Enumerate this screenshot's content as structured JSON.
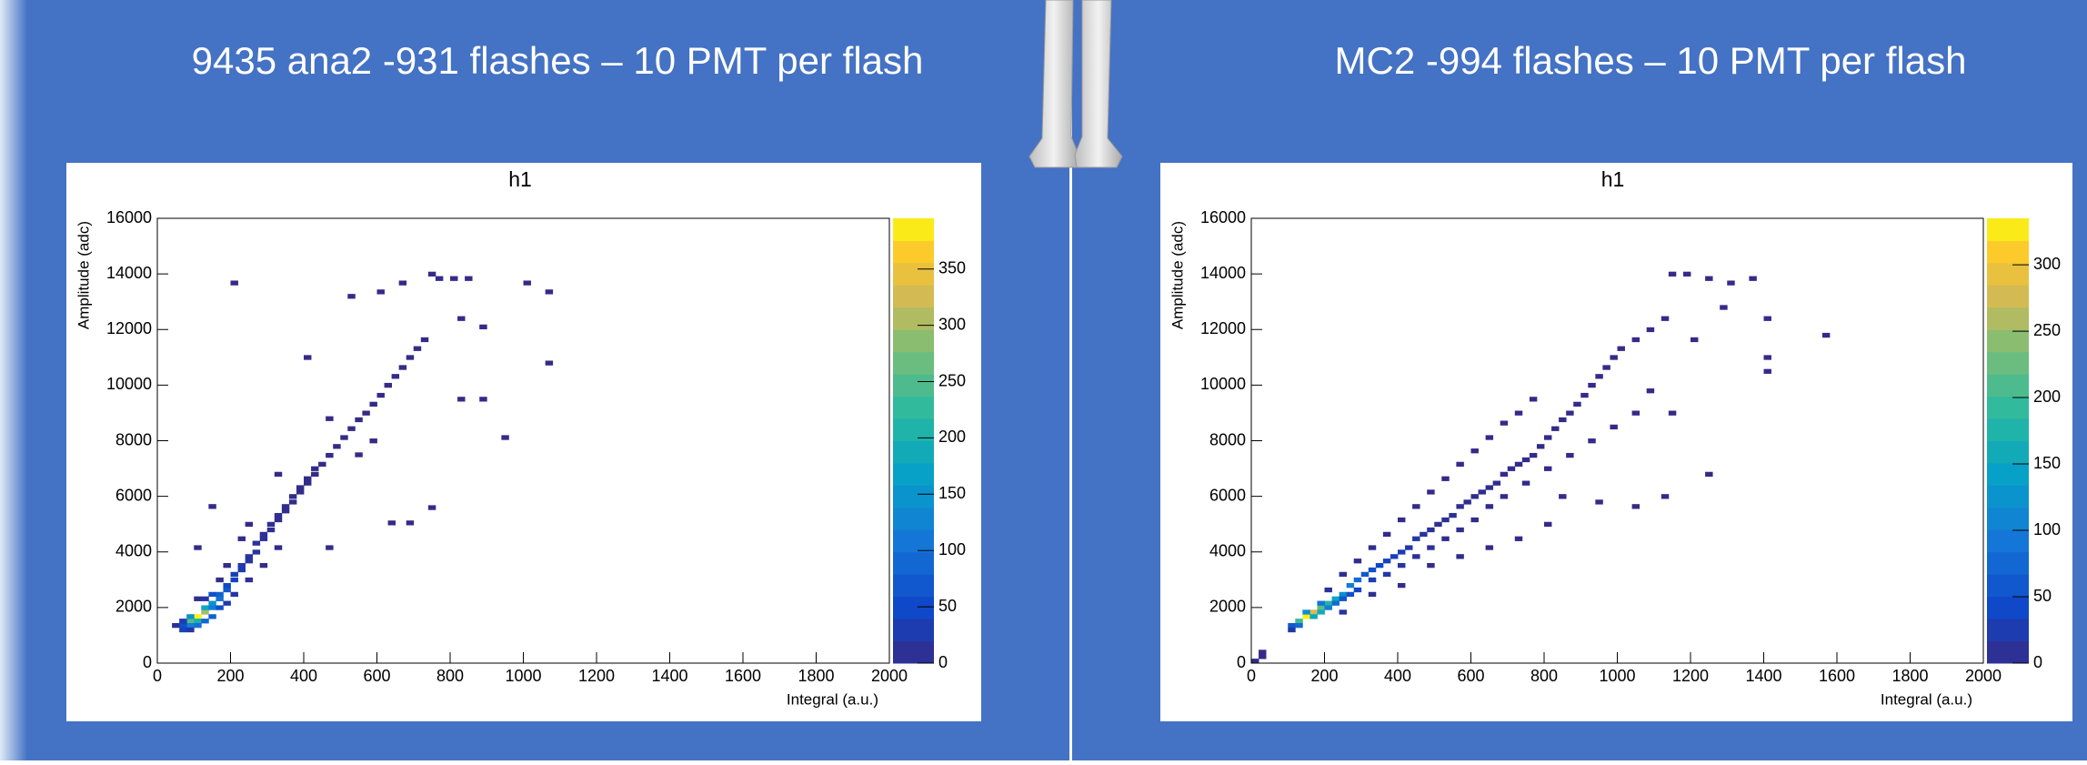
{
  "chart_data": [
    {
      "type": "heatmap",
      "heading": "9435 ana2 -931 flashes – 10 PMT per flash",
      "title": "h1",
      "x_label": "Integral (a.u.)",
      "y_label": "Amplitude (adc)",
      "xlim": [
        0,
        2000
      ],
      "xticks": [
        0,
        200,
        400,
        600,
        800,
        1000,
        1200,
        1400,
        1600,
        1800,
        2000
      ],
      "ylim": [
        0,
        16000
      ],
      "yticks": [
        0,
        2000,
        4000,
        6000,
        8000,
        10000,
        12000,
        14000,
        16000
      ],
      "zlim": [
        0,
        395
      ],
      "zticks": [
        0,
        50,
        100,
        150,
        200,
        250,
        300,
        350
      ],
      "points": [
        [
          90,
          1520,
          250
        ],
        [
          110,
          1680,
          390
        ],
        [
          130,
          1840,
          300
        ],
        [
          110,
          1520,
          200
        ],
        [
          90,
          1360,
          120
        ],
        [
          130,
          2000,
          180
        ],
        [
          150,
          2160,
          150
        ],
        [
          150,
          2000,
          120
        ],
        [
          170,
          2320,
          100
        ],
        [
          170,
          2480,
          80
        ],
        [
          70,
          1360,
          60
        ],
        [
          70,
          1200,
          40
        ],
        [
          130,
          1520,
          90
        ],
        [
          150,
          2480,
          60
        ],
        [
          190,
          2640,
          70
        ],
        [
          190,
          2800,
          50
        ],
        [
          210,
          3000,
          40
        ],
        [
          210,
          3200,
          35
        ],
        [
          230,
          3360,
          30
        ],
        [
          230,
          3520,
          25
        ],
        [
          250,
          3680,
          20
        ],
        [
          250,
          3840,
          15
        ],
        [
          270,
          4000,
          15
        ],
        [
          270,
          4320,
          12
        ],
        [
          290,
          4480,
          10
        ],
        [
          290,
          4640,
          10
        ],
        [
          310,
          4800,
          8
        ],
        [
          310,
          5000,
          8
        ],
        [
          330,
          5160,
          6
        ],
        [
          330,
          5320,
          6
        ],
        [
          350,
          5480,
          5
        ],
        [
          350,
          5640,
          5
        ],
        [
          370,
          5800,
          4
        ],
        [
          370,
          6000,
          4
        ],
        [
          390,
          6160,
          3
        ],
        [
          390,
          6320,
          3
        ],
        [
          410,
          6480,
          3
        ],
        [
          410,
          6640,
          2
        ],
        [
          430,
          6800,
          2
        ],
        [
          430,
          7000,
          2
        ],
        [
          450,
          7160,
          1
        ],
        [
          470,
          7480,
          1
        ],
        [
          490,
          7800,
          1
        ],
        [
          510,
          8120,
          1
        ],
        [
          530,
          8440,
          1
        ],
        [
          550,
          8760,
          1
        ],
        [
          570,
          9000,
          1
        ],
        [
          590,
          9320,
          1
        ],
        [
          610,
          9640,
          1
        ],
        [
          630,
          10000,
          1
        ],
        [
          650,
          10320,
          1
        ],
        [
          670,
          10640,
          1
        ],
        [
          690,
          11000,
          1
        ],
        [
          710,
          11320,
          1
        ],
        [
          730,
          11640,
          1
        ],
        [
          750,
          14000,
          1
        ],
        [
          770,
          13840,
          1
        ],
        [
          810,
          13840,
          1
        ],
        [
          850,
          13840,
          1
        ],
        [
          1010,
          13680,
          1
        ],
        [
          1070,
          13360,
          1
        ],
        [
          1070,
          10800,
          1
        ],
        [
          950,
          8120,
          1
        ],
        [
          830,
          9500,
          1
        ],
        [
          890,
          9500,
          1
        ],
        [
          210,
          13680,
          1
        ],
        [
          530,
          13200,
          1
        ],
        [
          610,
          13360,
          1
        ],
        [
          670,
          13680,
          1
        ],
        [
          890,
          12100,
          1
        ],
        [
          830,
          12400,
          1
        ],
        [
          640,
          5050,
          1
        ],
        [
          690,
          5050,
          1
        ],
        [
          750,
          5600,
          1
        ],
        [
          470,
          4160,
          1
        ],
        [
          110,
          4160,
          1
        ],
        [
          150,
          5640,
          1
        ],
        [
          330,
          6800,
          1
        ],
        [
          250,
          5000,
          1
        ],
        [
          590,
          8000,
          1
        ],
        [
          470,
          8800,
          1
        ],
        [
          410,
          11000,
          1
        ],
        [
          550,
          7500,
          1
        ],
        [
          290,
          3520,
          2
        ],
        [
          330,
          4160,
          2
        ],
        [
          190,
          3520,
          2
        ],
        [
          230,
          4480,
          2
        ],
        [
          170,
          3000,
          3
        ],
        [
          110,
          2320,
          5
        ],
        [
          70,
          1520,
          30
        ],
        [
          190,
          2160,
          25
        ],
        [
          210,
          2480,
          20
        ],
        [
          250,
          3000,
          10
        ],
        [
          150,
          1680,
          80
        ],
        [
          170,
          2000,
          60
        ],
        [
          130,
          2320,
          20
        ],
        [
          90,
          1680,
          150
        ],
        [
          110,
          1360,
          100
        ],
        [
          50,
          1360,
          10
        ],
        [
          90,
          1200,
          20
        ]
      ]
    },
    {
      "type": "heatmap",
      "heading": "MC2 -994 flashes – 10 PMT per flash",
      "title": "h1",
      "x_label": "Integral (a.u.)",
      "y_label": "Amplitude (adc)",
      "xlim": [
        0,
        2000
      ],
      "xticks": [
        0,
        200,
        400,
        600,
        800,
        1000,
        1200,
        1400,
        1600,
        1800,
        2000
      ],
      "ylim": [
        0,
        16000
      ],
      "yticks": [
        0,
        2000,
        4000,
        6000,
        8000,
        10000,
        12000,
        14000,
        16000
      ],
      "zlim": [
        0,
        335
      ],
      "zticks": [
        0,
        50,
        100,
        150,
        200,
        250,
        300
      ],
      "points": [
        [
          150,
          1680,
          330
        ],
        [
          170,
          1840,
          280
        ],
        [
          130,
          1520,
          200
        ],
        [
          190,
          2000,
          220
        ],
        [
          210,
          2160,
          180
        ],
        [
          230,
          2320,
          150
        ],
        [
          250,
          2480,
          120
        ],
        [
          270,
          2800,
          100
        ],
        [
          290,
          3000,
          80
        ],
        [
          310,
          3200,
          60
        ],
        [
          330,
          3360,
          50
        ],
        [
          350,
          3520,
          40
        ],
        [
          370,
          3680,
          35
        ],
        [
          390,
          3840,
          30
        ],
        [
          410,
          4000,
          25
        ],
        [
          430,
          4160,
          20
        ],
        [
          450,
          4480,
          18
        ],
        [
          470,
          4640,
          15
        ],
        [
          490,
          4800,
          12
        ],
        [
          510,
          5000,
          10
        ],
        [
          530,
          5160,
          8
        ],
        [
          550,
          5320,
          8
        ],
        [
          570,
          5640,
          6
        ],
        [
          590,
          5800,
          5
        ],
        [
          610,
          6000,
          5
        ],
        [
          630,
          6160,
          4
        ],
        [
          650,
          6320,
          4
        ],
        [
          670,
          6480,
          3
        ],
        [
          690,
          6800,
          3
        ],
        [
          710,
          7000,
          3
        ],
        [
          730,
          7160,
          2
        ],
        [
          750,
          7320,
          2
        ],
        [
          770,
          7480,
          2
        ],
        [
          790,
          7800,
          2
        ],
        [
          810,
          8120,
          1
        ],
        [
          830,
          8440,
          1
        ],
        [
          850,
          8760,
          1
        ],
        [
          870,
          9000,
          1
        ],
        [
          890,
          9320,
          1
        ],
        [
          910,
          9640,
          1
        ],
        [
          930,
          10000,
          1
        ],
        [
          950,
          10320,
          1
        ],
        [
          970,
          10640,
          1
        ],
        [
          990,
          11000,
          1
        ],
        [
          1010,
          11320,
          1
        ],
        [
          1050,
          11640,
          1
        ],
        [
          1090,
          12000,
          1
        ],
        [
          1130,
          12400,
          1
        ],
        [
          1150,
          14000,
          1
        ],
        [
          1190,
          14000,
          1
        ],
        [
          1250,
          13840,
          1
        ],
        [
          1310,
          13680,
          1
        ],
        [
          1370,
          13840,
          1
        ],
        [
          1410,
          12400,
          1
        ],
        [
          1570,
          11800,
          1
        ],
        [
          1410,
          11000,
          1
        ],
        [
          1410,
          10500,
          1
        ],
        [
          1250,
          6800,
          1
        ],
        [
          1050,
          5640,
          1
        ],
        [
          1130,
          6000,
          1
        ],
        [
          850,
          6000,
          1
        ],
        [
          950,
          5800,
          1
        ],
        [
          1150,
          9000,
          1
        ],
        [
          1210,
          11640,
          1
        ],
        [
          1290,
          12800,
          1
        ],
        [
          10,
          80,
          2
        ],
        [
          30,
          240,
          1
        ],
        [
          30,
          400,
          1
        ],
        [
          110,
          1360,
          60
        ],
        [
          110,
          1200,
          20
        ],
        [
          130,
          1360,
          80
        ],
        [
          170,
          1680,
          150
        ],
        [
          190,
          1840,
          160
        ],
        [
          210,
          2000,
          100
        ],
        [
          230,
          2160,
          80
        ],
        [
          150,
          1840,
          120
        ],
        [
          190,
          2160,
          90
        ],
        [
          250,
          2320,
          60
        ],
        [
          270,
          2480,
          50
        ],
        [
          290,
          2640,
          40
        ],
        [
          330,
          3000,
          30
        ],
        [
          370,
          3200,
          20
        ],
        [
          410,
          3520,
          15
        ],
        [
          450,
          3840,
          10
        ],
        [
          490,
          4160,
          8
        ],
        [
          530,
          4480,
          6
        ],
        [
          570,
          4800,
          5
        ],
        [
          610,
          5160,
          4
        ],
        [
          650,
          5640,
          3
        ],
        [
          690,
          6000,
          2
        ],
        [
          750,
          6480,
          2
        ],
        [
          810,
          7000,
          1
        ],
        [
          870,
          7480,
          1
        ],
        [
          930,
          8000,
          1
        ],
        [
          990,
          8500,
          1
        ],
        [
          1050,
          9000,
          1
        ],
        [
          1090,
          9800,
          1
        ],
        [
          210,
          2640,
          10
        ],
        [
          250,
          3200,
          6
        ],
        [
          290,
          3680,
          4
        ],
        [
          330,
          4160,
          3
        ],
        [
          370,
          4640,
          2
        ],
        [
          410,
          5160,
          2
        ],
        [
          450,
          5640,
          1
        ],
        [
          490,
          6160,
          1
        ],
        [
          530,
          6640,
          1
        ],
        [
          570,
          7160,
          1
        ],
        [
          610,
          7640,
          1
        ],
        [
          650,
          8120,
          1
        ],
        [
          690,
          8640,
          1
        ],
        [
          730,
          9000,
          1
        ],
        [
          770,
          9500,
          1
        ],
        [
          250,
          1840,
          15
        ],
        [
          330,
          2480,
          10
        ],
        [
          410,
          2800,
          5
        ],
        [
          490,
          3520,
          3
        ],
        [
          570,
          3840,
          2
        ],
        [
          650,
          4160,
          1
        ],
        [
          730,
          4480,
          1
        ],
        [
          810,
          5000,
          1
        ]
      ]
    }
  ]
}
